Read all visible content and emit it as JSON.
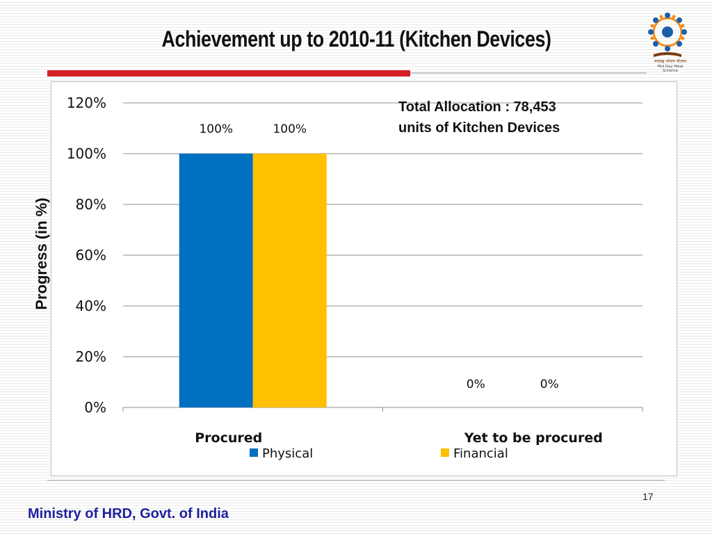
{
  "slide": {
    "title": "Achievement up to 2010-11 (Kitchen Devices)",
    "logo": {
      "icon": "mid-day-meal-logo-icon",
      "text_line1": "मध्याह्न भोजन योजना",
      "text_line2": "Mid Day Meal Scheme"
    },
    "accent_color": "#d42027",
    "page_number": "17",
    "footer": "Ministry of HRD, Govt. of India"
  },
  "chart_data": {
    "type": "bar",
    "categories": [
      "Procured",
      "Yet to be procured"
    ],
    "series": [
      {
        "name": "Physical",
        "color": "#0070c0",
        "values": [
          100,
          0
        ],
        "labels": [
          "100%",
          "0%"
        ]
      },
      {
        "name": "Financial",
        "color": "#ffc000",
        "values": [
          100,
          0
        ],
        "labels": [
          "100%",
          "0%"
        ]
      }
    ],
    "ylabel": "Progress (in %)",
    "xlabel": "",
    "ylim": [
      0,
      120
    ],
    "yticks": [
      "0%",
      "20%",
      "40%",
      "60%",
      "80%",
      "100%",
      "120%"
    ],
    "grid": true,
    "legend_position": "bottom",
    "annotation": [
      "Total Allocation : 78,453",
      "units of Kitchen Devices"
    ]
  }
}
